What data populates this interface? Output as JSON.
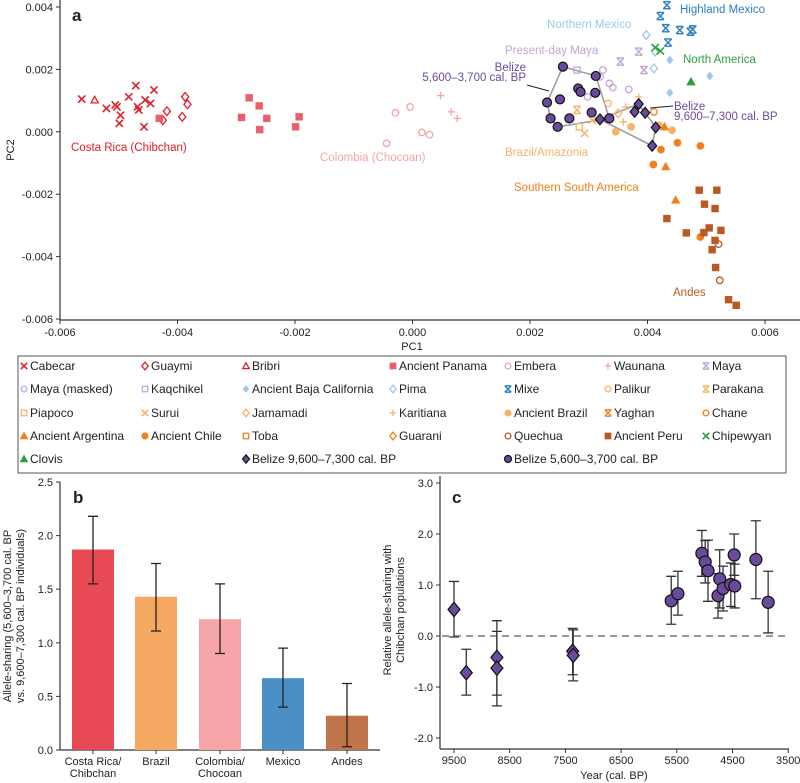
{
  "colors": {
    "costa_rica": "#e0202a",
    "ancient_panama": "#e8606a",
    "colombia": "#f2a5a5",
    "maya": "#c1a6d8",
    "north_mexico": "#9cc9e6",
    "highland": "#2a7fc0",
    "brazil": "#f7b469",
    "southern": "#f0801e",
    "andes": "#b85a23",
    "north_america": "#2e9e3e",
    "belize": "#6a4a9c"
  },
  "chart_data": [
    {
      "panel": "a",
      "type": "scatter",
      "xlabel": "PC1",
      "ylabel": "PC2",
      "xlim": [
        -0.006,
        0.0065
      ],
      "ylim": [
        -0.006,
        0.0042
      ],
      "xticks": [
        "-0.006",
        "-0.004",
        "-0.002",
        "0.000",
        "0.002",
        "0.004",
        "0.006"
      ],
      "yticks": [
        "0.004",
        "0.002",
        "0.000",
        "-0.002",
        "-0.004",
        "-0.006"
      ],
      "group_labels": {
        "costa_rica": "Costa Rica (Chibchan)",
        "colombia": "Colombia (Chocoan)",
        "northern_mexico": "Northern Mexico",
        "highland_mexico": "Highland Mexico",
        "present_day_maya": "Present-day Maya",
        "north_america": "North America",
        "belize_late_1": "Belize",
        "belize_late_2": "5,600–3,700 cal. BP",
        "belize_early_1": "Belize",
        "belize_early_2": "9,600–7,300 cal. BP",
        "brazil": "Brazil/Amazonia",
        "southern": "Southern South America",
        "andes": "Andes"
      },
      "series": [
        {
          "name": "Cabecar",
          "shape": "x",
          "color": "#e0202a",
          "points": [
            [
              -0.00563,
              0.00105
            ],
            [
              -0.00521,
              0.00075
            ],
            [
              -0.00506,
              0.00086
            ],
            [
              -0.00497,
              0.00053
            ],
            [
              -0.00499,
              0.00027
            ],
            [
              -0.00471,
              0.00148
            ],
            [
              -0.00483,
              0.00112
            ],
            [
              -0.00466,
              0.0007
            ],
            [
              -0.00455,
              0.00102
            ],
            [
              -0.00457,
              0.00016
            ],
            [
              -0.00446,
              0.00091
            ],
            [
              -0.0044,
              0.00134
            ],
            [
              -0.00468,
              0.0008
            ],
            [
              -0.00503,
              0.0008
            ]
          ]
        },
        {
          "name": "Guaymi",
          "shape": "diamond-open",
          "color": "#e0202a",
          "points": [
            [
              -0.00418,
              0.00066
            ],
            [
              -0.00425,
              0.00037
            ],
            [
              -0.00392,
              0.00048
            ],
            [
              -0.00387,
              0.00112
            ],
            [
              -0.00383,
              0.00088
            ]
          ]
        },
        {
          "name": "Bribri",
          "shape": "triangle-open",
          "color": "#e0202a",
          "points": [
            [
              -0.00541,
              0.00102
            ]
          ]
        },
        {
          "name": "Ancient Panama",
          "shape": "square",
          "color": "#e8606a",
          "points": [
            [
              -0.00431,
              0.00043
            ],
            [
              -0.00278,
              0.00109
            ],
            [
              -0.00261,
              0.00083
            ],
            [
              -0.00291,
              0.00046
            ],
            [
              -0.00248,
              0.00043
            ],
            [
              -0.0026,
              7e-05
            ],
            [
              -0.00199,
              0.00016
            ],
            [
              -0.00193,
              0.00048
            ]
          ]
        },
        {
          "name": "Embera",
          "shape": "circle-open",
          "color": "#f2a5a5",
          "points": [
            [
              -0.00044,
              -0.00037
            ],
            [
              -0.00029,
              0.00061
            ],
            [
              -4e-05,
              0.0008
            ],
            [
              0.00016,
              -2e-05
            ],
            [
              0.00029,
              -9e-05
            ]
          ]
        },
        {
          "name": "Waunana",
          "shape": "plus",
          "color": "#f2a5a5",
          "points": [
            [
              0.00048,
              0.00116
            ],
            [
              0.00066,
              0.00064
            ],
            [
              0.00076,
              0.00043
            ]
          ]
        },
        {
          "name": "Maya",
          "shape": "asterisk",
          "color": "#c1a6d8",
          "points": [
            [
              0.00354,
              0.00225
            ],
            [
              0.00394,
              0.00198
            ],
            [
              0.00385,
              0.00257
            ]
          ]
        },
        {
          "name": "Maya (masked)",
          "shape": "circle-open",
          "color": "#c1a6d8",
          "points": [
            [
              0.00324,
              0.00198
            ],
            [
              0.00335,
              0.00155
            ],
            [
              0.00341,
              0.00142
            ],
            [
              0.00368,
              0.00136
            ],
            [
              0.00298,
              0.00112
            ],
            [
              0.00319,
              0.00176
            ]
          ]
        },
        {
          "name": "Kaqchikel",
          "shape": "square-open",
          "color": "#c1a6d8",
          "points": [
            [
              0.0028,
              0.00198
            ]
          ]
        },
        {
          "name": "Ancient Baja California",
          "shape": "diamond",
          "color": "#9cc9e6",
          "points": [
            [
              0.00438,
              0.0023
            ],
            [
              0.00438,
              0.00125
            ],
            [
              0.00506,
              0.00179
            ]
          ]
        },
        {
          "name": "Pima",
          "shape": "diamond-open",
          "color": "#9cc9e6",
          "points": [
            [
              0.00398,
              0.0031
            ],
            [
              0.00413,
              0.00257
            ],
            [
              0.00411,
              0.00203
            ]
          ]
        },
        {
          "name": "Mixe",
          "shape": "asterisk",
          "color": "#2a7fc0",
          "points": [
            [
              0.00433,
              0.00406
            ],
            [
              0.00422,
              0.00371
            ],
            [
              0.00431,
              0.00332
            ],
            [
              0.00455,
              0.00326
            ],
            [
              0.00473,
              0.00321
            ],
            [
              0.00477,
              0.00328
            ],
            [
              0.00435,
              0.00286
            ]
          ]
        },
        {
          "name": "Palikur",
          "shape": "circle-open",
          "color": "#f7b469",
          "points": [
            [
              0.00333,
              0.00091
            ]
          ]
        },
        {
          "name": "Parakana",
          "shape": "asterisk",
          "color": "#f7b469",
          "points": [
            [
              0.0028,
              0.0007
            ]
          ]
        },
        {
          "name": "Piapoco",
          "shape": "square-open",
          "color": "#f7b469",
          "points": [
            [
              0.00284,
              0.00016
            ]
          ]
        },
        {
          "name": "Surui",
          "shape": "x",
          "color": "#f7b469",
          "points": [
            [
              0.00293,
              -5e-05
            ],
            [
              0.00306,
              0.00037
            ]
          ]
        },
        {
          "name": "Jamamadi",
          "shape": "diamond-open",
          "color": "#f7b469",
          "points": [
            [
              0.0035,
              0.00059
            ]
          ]
        },
        {
          "name": "Karitiana",
          "shape": "plus",
          "color": "#f7b469",
          "points": [
            [
              0.00363,
              0.0008
            ],
            [
              0.00385,
              0.00112
            ],
            [
              0.00359,
              0.00032
            ]
          ]
        },
        {
          "name": "Ancient Brazil",
          "shape": "circle",
          "color": "#f7b469",
          "points": [
            [
              0.00346,
              0.0
            ],
            [
              0.00372,
              0.00016
            ],
            [
              0.00442,
              5e-05
            ],
            [
              0.0042,
              0.00021
            ]
          ]
        },
        {
          "name": "Yaghan",
          "shape": "asterisk",
          "color": "#f0801e",
          "points": []
        },
        {
          "name": "Chane",
          "shape": "circle-open",
          "color": "#f0801e",
          "points": [
            [
              0.00411,
              0.00064
            ]
          ]
        },
        {
          "name": "Ancient Argentina",
          "shape": "triangle",
          "color": "#f0801e",
          "points": [
            [
              0.00429,
              0.00016
            ],
            [
              0.00431,
              -0.00112
            ],
            [
              0.00448,
              -0.00219
            ]
          ]
        },
        {
          "name": "Ancient Chile",
          "shape": "circle",
          "color": "#f0801e",
          "points": [
            [
              0.0041,
              -0.00105
            ],
            [
              0.00423,
              -0.00057
            ],
            [
              0.00451,
              -0.00035
            ],
            [
              0.0049,
              -0.00045
            ],
            [
              0.0049,
              -0.00337
            ]
          ]
        },
        {
          "name": "Toba",
          "shape": "square-open",
          "color": "#f0801e",
          "points": []
        },
        {
          "name": "Guarani",
          "shape": "diamond-open",
          "color": "#f0801e",
          "points": []
        },
        {
          "name": "Quechua",
          "shape": "circle-open",
          "color": "#b85a23",
          "points": [
            [
              0.00521,
              -0.0036
            ],
            [
              0.00523,
              -0.00476
            ]
          ]
        },
        {
          "name": "Ancient Peru",
          "shape": "square",
          "color": "#b85a23",
          "points": [
            [
              0.00488,
              -0.00187
            ],
            [
              0.00518,
              -0.00187
            ],
            [
              0.00497,
              -0.00232
            ],
            [
              0.00515,
              -0.00246
            ],
            [
              0.00433,
              -0.00278
            ],
            [
              0.00466,
              -0.00324
            ],
            [
              0.00505,
              -0.00308
            ],
            [
              0.00525,
              -0.00316
            ],
            [
              0.00496,
              -0.00323
            ],
            [
              0.00515,
              -0.00348
            ],
            [
              0.0051,
              -0.00378
            ],
            [
              0.00516,
              -0.00435
            ],
            [
              0.00538,
              -0.00538
            ],
            [
              0.00551,
              -0.00556
            ]
          ]
        },
        {
          "name": "Chipewyan",
          "shape": "x",
          "color": "#2e9e3e",
          "points": [
            [
              0.00413,
              0.0027
            ],
            [
              0.00422,
              0.00259
            ]
          ]
        },
        {
          "name": "Clovis",
          "shape": "triangle",
          "color": "#2e9e3e",
          "points": [
            [
              0.00474,
              0.0016
            ]
          ]
        },
        {
          "name": "Belize 9,600–7,300 cal. BP",
          "shape": "diamond-outlined",
          "color": "#6a4a9c",
          "points": [
            [
              0.00319,
              0.0004
            ],
            [
              0.00378,
              0.00064
            ],
            [
              0.00385,
              0.00089
            ],
            [
              0.00396,
              0.00061
            ],
            [
              0.00414,
              0.00014
            ],
            [
              0.00408,
              -0.00045
            ]
          ]
        },
        {
          "name": "Belize 5,600–3,700 cal. BP",
          "shape": "circle-outlined",
          "color": "#6a4a9c",
          "points": [
            [
              0.00256,
              0.00209
            ],
            [
              0.00251,
              0.00104
            ],
            [
              0.00229,
              0.00094
            ],
            [
              0.00282,
              0.00139
            ],
            [
              0.00286,
              0.00128
            ],
            [
              0.00312,
              0.00179
            ],
            [
              0.00311,
              0.00125
            ],
            [
              0.00235,
              0.00043
            ],
            [
              0.00267,
              0.00043
            ],
            [
              0.00247,
              0.00016
            ],
            [
              0.00305,
              0.00062
            ],
            [
              0.00335,
              0.00043
            ]
          ]
        }
      ]
    },
    {
      "panel": "b",
      "type": "bar",
      "ylabel_line1": "Allele-sharing (5,600–3,700 cal. BP",
      "ylabel_line2": "vs. 9,600–7,300 cal. BP individuals)",
      "ylim": [
        0,
        2.5
      ],
      "yticks": [
        "0.0",
        "0.5",
        "1.0",
        "1.5",
        "2.0",
        "2.5"
      ],
      "categories": [
        [
          "Costa Rica/",
          "Chibchan"
        ],
        [
          "Brazil"
        ],
        [
          "Colombia/",
          "Chocoan"
        ],
        [
          "Mexico"
        ],
        [
          "Andes"
        ]
      ],
      "values": [
        1.87,
        1.43,
        1.22,
        0.67,
        0.32
      ],
      "error_low": [
        1.55,
        1.11,
        0.9,
        0.4,
        0.03
      ],
      "error_high": [
        2.18,
        1.74,
        1.55,
        0.95,
        0.62
      ],
      "bar_colors": [
        "#e84a55",
        "#f5a862",
        "#f6a6a8",
        "#4b8fc7",
        "#c0744a"
      ]
    },
    {
      "panel": "c",
      "type": "scatter",
      "xlabel": "Year (cal. BP)",
      "ylabel_line1": "Relative allele-sharing with",
      "ylabel_line2": "Chibchan populations",
      "xlim": [
        9700,
        3500
      ],
      "ylim": [
        -2.25,
        3.0
      ],
      "xticks": [
        "9500",
        "8500",
        "7500",
        "6500",
        "5500",
        "4500",
        "3500"
      ],
      "yticks": [
        "3.0",
        "2.0",
        "1.0",
        "0.0",
        "-1.0",
        "-2.0"
      ],
      "reference_line": 0.0,
      "series": [
        {
          "shape": "diamond-outlined",
          "color": "#6a4a9c",
          "points": [
            {
              "year": 9500,
              "value": 0.52,
              "low": -0.02,
              "high": 1.07
            },
            {
              "year": 9280,
              "value": -0.72,
              "low": -1.16,
              "high": -0.26
            },
            {
              "year": 8730,
              "value": -0.42,
              "low": -1.16,
              "high": 0.3
            },
            {
              "year": 8730,
              "value": -0.63,
              "low": -1.37,
              "high": 0.09
            },
            {
              "year": 7370,
              "value": -0.3,
              "low": -0.76,
              "high": 0.15
            },
            {
              "year": 7360,
              "value": -0.38,
              "low": -0.88,
              "high": 0.12
            }
          ]
        },
        {
          "shape": "circle-outlined",
          "color": "#6a4a9c",
          "points": [
            {
              "year": 5600,
              "value": 0.69,
              "low": 0.23,
              "high": 1.17
            },
            {
              "year": 5480,
              "value": 0.83,
              "low": 0.41,
              "high": 1.27
            },
            {
              "year": 5050,
              "value": 1.62,
              "low": 1.17,
              "high": 2.07
            },
            {
              "year": 4990,
              "value": 1.45,
              "low": 1.04,
              "high": 1.87
            },
            {
              "year": 4940,
              "value": 1.28,
              "low": 0.68,
              "high": 1.88
            },
            {
              "year": 4760,
              "value": 0.79,
              "low": 0.35,
              "high": 1.22
            },
            {
              "year": 4730,
              "value": 1.12,
              "low": 0.55,
              "high": 1.69
            },
            {
              "year": 4670,
              "value": 0.93,
              "low": 0.49,
              "high": 1.37
            },
            {
              "year": 4530,
              "value": 1.01,
              "low": 0.58,
              "high": 1.43
            },
            {
              "year": 4470,
              "value": 1.59,
              "low": 1.19,
              "high": 2.0
            },
            {
              "year": 4460,
              "value": 0.98,
              "low": 0.55,
              "high": 1.41
            },
            {
              "year": 4080,
              "value": 1.5,
              "low": 0.73,
              "high": 2.26
            },
            {
              "year": 3860,
              "value": 0.66,
              "low": 0.06,
              "high": 1.27
            }
          ]
        }
      ]
    }
  ],
  "panel_letters": {
    "a": "a",
    "b": "b",
    "c": "c"
  }
}
